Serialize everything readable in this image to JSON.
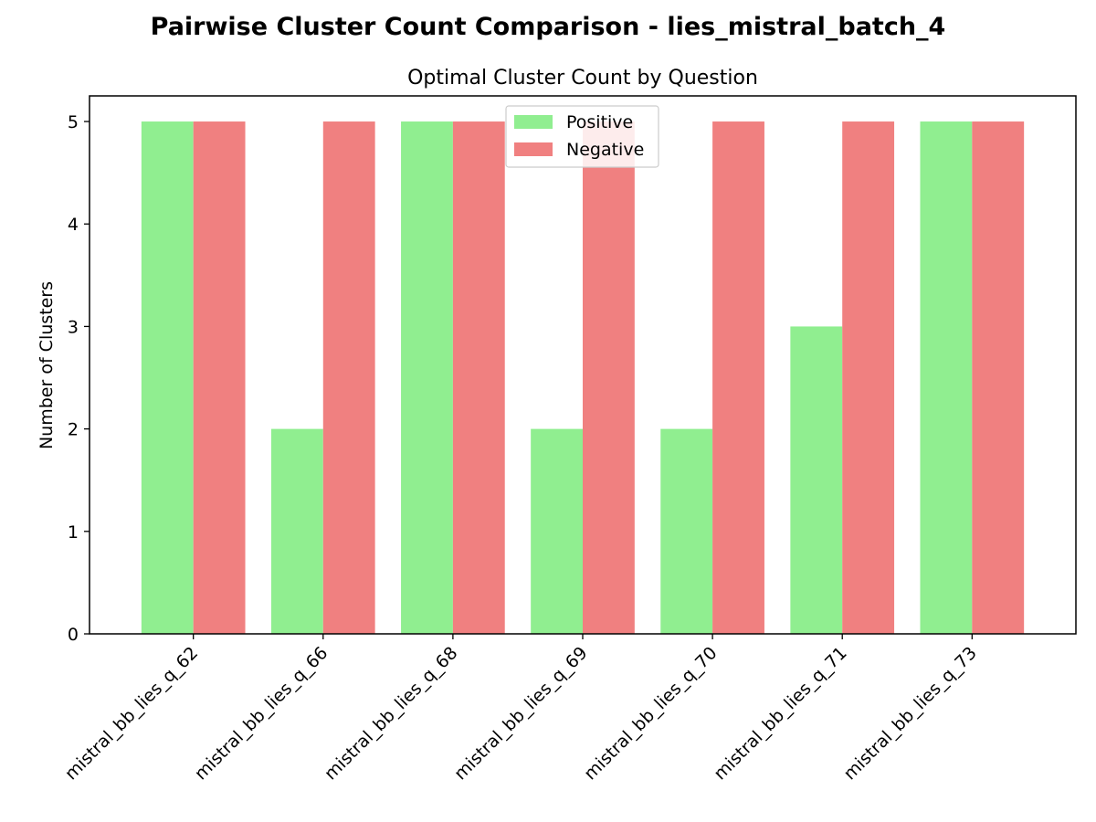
{
  "figure": {
    "suptitle": "Pairwise Cluster Count Comparison - lies_mistral_batch_4"
  },
  "chart_data": {
    "type": "bar",
    "title": "Optimal Cluster Count by Question",
    "xlabel": "",
    "ylabel": "Number of Clusters",
    "categories": [
      "mistral_bb_lies_q_62",
      "mistral_bb_lies_q_66",
      "mistral_bb_lies_q_68",
      "mistral_bb_lies_q_69",
      "mistral_bb_lies_q_70",
      "mistral_bb_lies_q_71",
      "mistral_bb_lies_q_73"
    ],
    "series": [
      {
        "name": "Positive",
        "color": "#90ee90",
        "values": [
          5,
          2,
          5,
          2,
          2,
          3,
          5
        ]
      },
      {
        "name": "Negative",
        "color": "#f08080",
        "values": [
          5,
          5,
          5,
          5,
          5,
          5,
          5
        ]
      }
    ],
    "yticks": [
      0,
      1,
      2,
      3,
      4,
      5
    ],
    "ylim": [
      0,
      5.25
    ],
    "grid": false,
    "legend": "top-center"
  }
}
